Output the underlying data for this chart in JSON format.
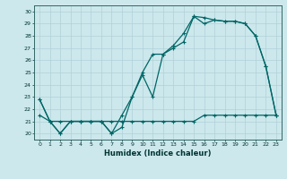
{
  "xlabel": "Humidex (Indice chaleur)",
  "bg_color": "#cce8ec",
  "grid_color": "#b0d0d8",
  "line_color": "#006666",
  "xlim": [
    -0.5,
    23.5
  ],
  "ylim": [
    19.5,
    30.5
  ],
  "yticks": [
    20,
    21,
    22,
    23,
    24,
    25,
    26,
    27,
    28,
    29,
    30
  ],
  "xticks": [
    0,
    1,
    2,
    3,
    4,
    5,
    6,
    7,
    8,
    9,
    10,
    11,
    12,
    13,
    14,
    15,
    16,
    17,
    18,
    19,
    20,
    21,
    22,
    23
  ],
  "series1_x": [
    0,
    1,
    2,
    3,
    4,
    5,
    6,
    7,
    8,
    9,
    10,
    11,
    12,
    13,
    14,
    15,
    16,
    17,
    18,
    19,
    20,
    21,
    22,
    23
  ],
  "series1_y": [
    22.8,
    21.0,
    20.0,
    21.0,
    21.0,
    21.0,
    21.0,
    20.0,
    20.5,
    23.0,
    24.8,
    23.0,
    26.5,
    27.0,
    27.5,
    29.6,
    29.5,
    29.3,
    29.2,
    29.2,
    29.0,
    28.0,
    25.5,
    21.5
  ],
  "series2_x": [
    0,
    1,
    2,
    3,
    4,
    5,
    6,
    7,
    8,
    9,
    10,
    11,
    12,
    13,
    14,
    15,
    16,
    17,
    18,
    19,
    20,
    21,
    22,
    23
  ],
  "series2_y": [
    22.8,
    21.0,
    20.0,
    21.0,
    21.0,
    21.0,
    21.0,
    20.0,
    21.5,
    23.0,
    25.0,
    26.5,
    26.5,
    27.2,
    28.2,
    29.6,
    29.0,
    29.3,
    29.2,
    29.2,
    29.0,
    28.0,
    25.5,
    21.5
  ],
  "series3_x": [
    0,
    1,
    2,
    3,
    4,
    5,
    6,
    7,
    8,
    9,
    10,
    11,
    12,
    13,
    14,
    15,
    16,
    17,
    18,
    19,
    20,
    21,
    22,
    23
  ],
  "series3_y": [
    21.5,
    21.0,
    21.0,
    21.0,
    21.0,
    21.0,
    21.0,
    21.0,
    21.0,
    21.0,
    21.0,
    21.0,
    21.0,
    21.0,
    21.0,
    21.0,
    21.5,
    21.5,
    21.5,
    21.5,
    21.5,
    21.5,
    21.5,
    21.5
  ]
}
